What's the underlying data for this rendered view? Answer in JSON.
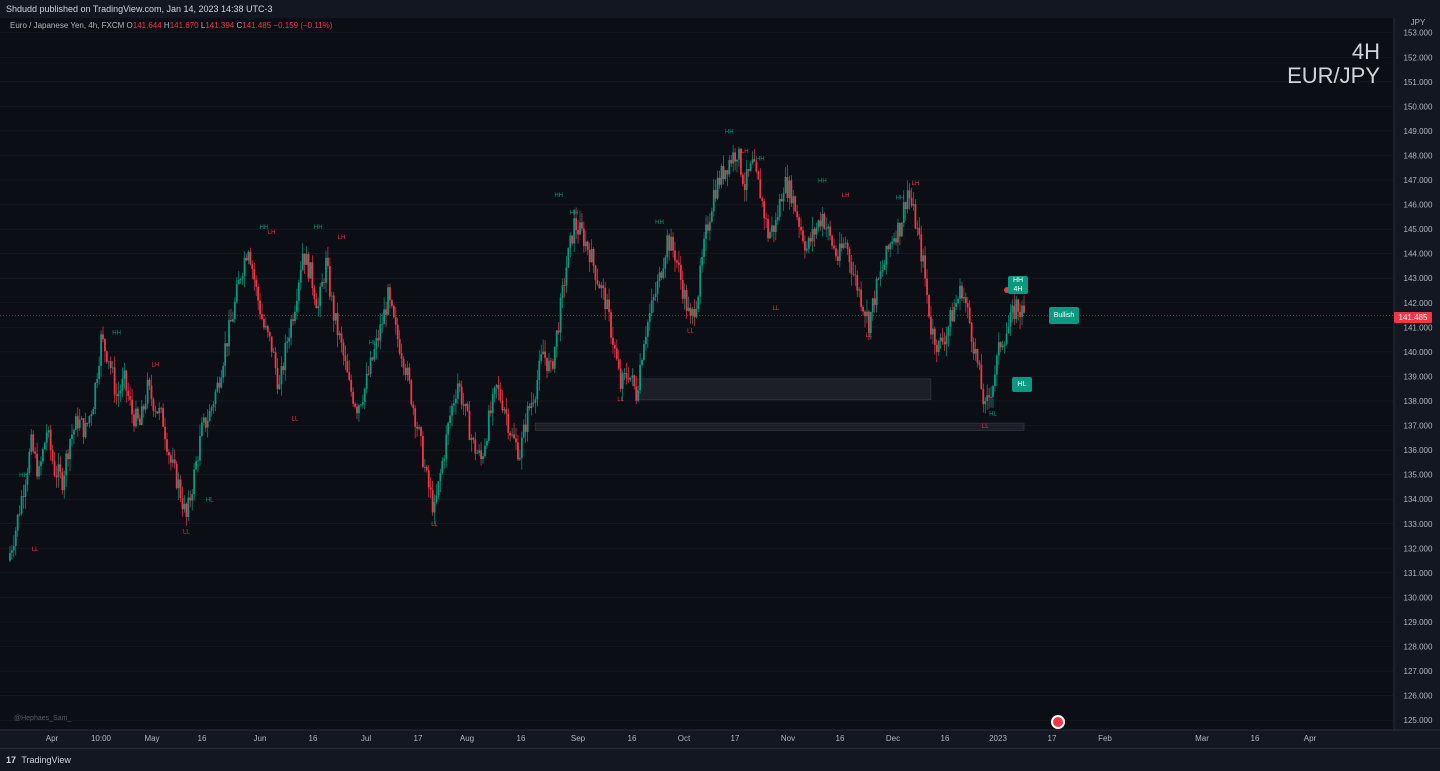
{
  "header": {
    "publish_line": "Shdudd published on TradingView.com, Jan 14, 2023 14:38 UTC-3"
  },
  "legend": {
    "symbol": "Euro / Japanese Yen, 4h, FXCM",
    "o_label": "O",
    "o_value": "141.644",
    "h_label": "H",
    "h_value": "141.670",
    "l_label": "L",
    "l_value": "141.394",
    "c_label": "C",
    "c_value": "141.485",
    "change": "−0.159 (−0.11%)"
  },
  "watermark": {
    "line1": "4H",
    "line2": "EUR/JPY"
  },
  "axis": {
    "currency": "JPY",
    "current_price": "141.485"
  },
  "badges": {
    "bullish": "Bullish",
    "hh": "HH",
    "fourh": "4H",
    "hl": "HL"
  },
  "credit": "@Hephaes_Sam_",
  "footer": {
    "brand": "TradingView"
  },
  "colors": {
    "background": "#0c0e15",
    "bull": "#089981",
    "bear": "#f23645",
    "grid": "#1c2030",
    "zone": "#2a2e39"
  },
  "chart_data": {
    "type": "candlestick",
    "title": "EUR/JPY 4H",
    "ylabel": "JPY",
    "ylim": [
      124.6,
      153.6
    ],
    "y_ticks": [
      125,
      126,
      127,
      128,
      129,
      130,
      131,
      132,
      133,
      134,
      135,
      136,
      137,
      138,
      139,
      140,
      141,
      142,
      143,
      144,
      145,
      146,
      147,
      148,
      149,
      150,
      151,
      152,
      153
    ],
    "x_ticks": [
      "Apr",
      "10:00",
      "May",
      "16",
      "Jun",
      "16",
      "Jul",
      "17",
      "Aug",
      "16",
      "Sep",
      "16",
      "Oct",
      "17",
      "Nov",
      "16",
      "Dec",
      "16",
      "2023",
      "17",
      "Feb",
      "Mar",
      "16",
      "Apr"
    ],
    "current_price": 141.485,
    "path": [
      [
        0,
        131.5
      ],
      [
        2,
        132.8
      ],
      [
        4,
        134.5
      ],
      [
        6,
        136.2
      ],
      [
        8,
        135.0
      ],
      [
        10,
        136.8
      ],
      [
        12,
        135.2
      ],
      [
        14,
        134.8
      ],
      [
        16,
        136.5
      ],
      [
        18,
        137.2
      ],
      [
        20,
        136.8
      ],
      [
        22,
        138.0
      ],
      [
        24,
        140.5
      ],
      [
        26,
        139.8
      ],
      [
        28,
        138.2
      ],
      [
        30,
        138.8
      ],
      [
        32,
        137.5
      ],
      [
        34,
        137.0
      ],
      [
        36,
        138.5
      ],
      [
        38,
        137.8
      ],
      [
        40,
        137.2
      ],
      [
        42,
        135.5
      ],
      [
        44,
        134.6
      ],
      [
        46,
        133.2
      ],
      [
        48,
        135.0
      ],
      [
        50,
        136.8
      ],
      [
        52,
        137.5
      ],
      [
        54,
        138.6
      ],
      [
        56,
        140.2
      ],
      [
        58,
        141.5
      ],
      [
        60,
        143.2
      ],
      [
        62,
        144.4
      ],
      [
        64,
        142.5
      ],
      [
        66,
        141.0
      ],
      [
        68,
        140.2
      ],
      [
        70,
        138.5
      ],
      [
        72,
        140.5
      ],
      [
        74,
        142.0
      ],
      [
        76,
        144.1
      ],
      [
        78,
        143.2
      ],
      [
        80,
        141.8
      ],
      [
        82,
        143.6
      ],
      [
        84,
        141.5
      ],
      [
        86,
        140.2
      ],
      [
        88,
        138.6
      ],
      [
        90,
        137.8
      ],
      [
        92,
        138.5
      ],
      [
        94,
        139.7
      ],
      [
        96,
        140.9
      ],
      [
        98,
        142.2
      ],
      [
        100,
        140.8
      ],
      [
        102,
        139.8
      ],
      [
        104,
        138.2
      ],
      [
        106,
        136.6
      ],
      [
        108,
        134.8
      ],
      [
        110,
        133.5
      ],
      [
        112,
        135.5
      ],
      [
        114,
        137.4
      ],
      [
        116,
        138.8
      ],
      [
        118,
        137.5
      ],
      [
        120,
        136.2
      ],
      [
        122,
        135.6
      ],
      [
        124,
        137.2
      ],
      [
        126,
        138.5
      ],
      [
        128,
        137.8
      ],
      [
        130,
        136.5
      ],
      [
        132,
        135.9
      ],
      [
        134,
        137.5
      ],
      [
        136,
        138.5
      ],
      [
        138,
        140.0
      ],
      [
        140,
        139.2
      ],
      [
        142,
        141.2
      ],
      [
        144,
        143.5
      ],
      [
        146,
        145.2
      ],
      [
        148,
        144.8
      ],
      [
        150,
        144.1
      ],
      [
        152,
        143.0
      ],
      [
        154,
        142.1
      ],
      [
        156,
        140.5
      ],
      [
        158,
        138.6
      ],
      [
        160,
        139.2
      ],
      [
        162,
        138.3
      ],
      [
        164,
        140.6
      ],
      [
        166,
        141.8
      ],
      [
        168,
        143.0
      ],
      [
        170,
        144.6
      ],
      [
        172,
        144.0
      ],
      [
        174,
        142.6
      ],
      [
        176,
        141.2
      ],
      [
        178,
        142.5
      ],
      [
        180,
        144.8
      ],
      [
        182,
        146.5
      ],
      [
        184,
        147.2
      ],
      [
        186,
        147.8
      ],
      [
        188,
        148.2
      ],
      [
        190,
        146.8
      ],
      [
        192,
        147.6
      ],
      [
        194,
        146.5
      ],
      [
        196,
        144.8
      ],
      [
        198,
        145.2
      ],
      [
        200,
        146.9
      ],
      [
        202,
        146.5
      ],
      [
        204,
        145.3
      ],
      [
        206,
        144.2
      ],
      [
        208,
        144.9
      ],
      [
        210,
        145.6
      ],
      [
        212,
        144.6
      ],
      [
        214,
        143.8
      ],
      [
        216,
        144.5
      ],
      [
        218,
        143.2
      ],
      [
        220,
        142.2
      ],
      [
        222,
        141.2
      ],
      [
        224,
        142.6
      ],
      [
        226,
        143.6
      ],
      [
        228,
        144.7
      ],
      [
        230,
        145.1
      ],
      [
        232,
        146.6
      ],
      [
        234,
        145.3
      ],
      [
        236,
        143.6
      ],
      [
        238,
        141.0
      ],
      [
        240,
        140.2
      ],
      [
        242,
        140.8
      ],
      [
        244,
        141.8
      ],
      [
        246,
        142.6
      ],
      [
        248,
        141.2
      ],
      [
        250,
        139.5
      ],
      [
        252,
        137.6
      ],
      [
        254,
        138.8
      ],
      [
        256,
        140.4
      ],
      [
        258,
        141.0
      ],
      [
        260,
        141.9
      ],
      [
        262,
        141.485
      ]
    ],
    "structure_zones": [
      {
        "y_top": 138.9,
        "y_bottom": 138.05,
        "x_from": 162,
        "x_to": 238
      },
      {
        "y_top": 137.1,
        "y_bottom": 136.8,
        "x_from": 136,
        "x_to": 262
      }
    ],
    "labels": [
      {
        "t": "HH",
        "x": 4,
        "y": 134.9,
        "k": "bull"
      },
      {
        "t": "LL",
        "x": 7,
        "y": 131.9,
        "k": "bear"
      },
      {
        "t": "HH",
        "x": 28,
        "y": 140.7,
        "k": "bull"
      },
      {
        "t": "LH",
        "x": 38,
        "y": 139.4,
        "k": "bear"
      },
      {
        "t": "LL",
        "x": 46,
        "y": 132.6,
        "k": "bear"
      },
      {
        "t": "HL",
        "x": 52,
        "y": 133.9,
        "k": "bull"
      },
      {
        "t": "HH",
        "x": 66,
        "y": 145.0,
        "k": "bull"
      },
      {
        "t": "LH",
        "x": 68,
        "y": 144.8,
        "k": "bear"
      },
      {
        "t": "HH",
        "x": 80,
        "y": 145.0,
        "k": "bull"
      },
      {
        "t": "LH",
        "x": 86,
        "y": 144.6,
        "k": "bear"
      },
      {
        "t": "LL",
        "x": 74,
        "y": 137.2,
        "k": "bear"
      },
      {
        "t": "HL",
        "x": 94,
        "y": 140.3,
        "k": "bull"
      },
      {
        "t": "LL",
        "x": 110,
        "y": 132.9,
        "k": "bear"
      },
      {
        "t": "HH",
        "x": 142,
        "y": 146.3,
        "k": "bull"
      },
      {
        "t": "HH",
        "x": 146,
        "y": 145.6,
        "k": "bull"
      },
      {
        "t": "LL",
        "x": 158,
        "y": 138.0,
        "k": "bear"
      },
      {
        "t": "HH",
        "x": 168,
        "y": 145.2,
        "k": "bull"
      },
      {
        "t": "LL",
        "x": 176,
        "y": 140.8,
        "k": "bear"
      },
      {
        "t": "HH",
        "x": 186,
        "y": 148.9,
        "k": "bull"
      },
      {
        "t": "LH",
        "x": 190,
        "y": 148.1,
        "k": "bear"
      },
      {
        "t": "HH",
        "x": 194,
        "y": 147.8,
        "k": "bull"
      },
      {
        "t": "LL",
        "x": 198,
        "y": 141.7,
        "k": "bear"
      },
      {
        "t": "HH",
        "x": 210,
        "y": 146.9,
        "k": "bull"
      },
      {
        "t": "LH",
        "x": 216,
        "y": 146.3,
        "k": "bear"
      },
      {
        "t": "LL",
        "x": 222,
        "y": 140.6,
        "k": "bear"
      },
      {
        "t": "HH",
        "x": 230,
        "y": 146.2,
        "k": "bull"
      },
      {
        "t": "LH",
        "x": 234,
        "y": 146.8,
        "k": "bear"
      },
      {
        "t": "LL",
        "x": 252,
        "y": 136.9,
        "k": "bear"
      },
      {
        "t": "HL",
        "x": 254,
        "y": 137.4,
        "k": "bull"
      }
    ]
  }
}
